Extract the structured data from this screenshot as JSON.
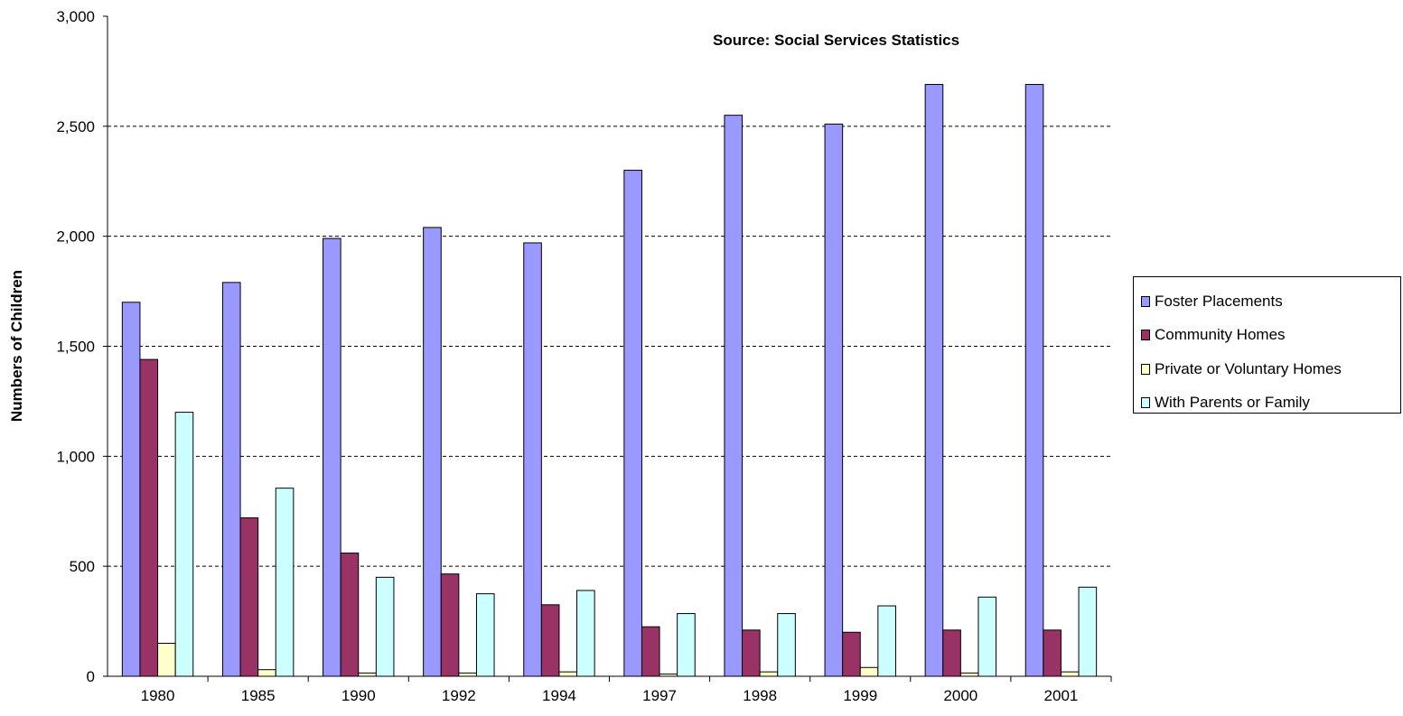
{
  "chart_data": {
    "type": "bar",
    "title": "",
    "annotation": "Source: Social Services Statistics",
    "xlabel": "",
    "ylabel": "Numbers of Children",
    "ylim": [
      0,
      3000
    ],
    "yticks": [
      "0",
      "500",
      "1,000",
      "1,500",
      "2,000",
      "2,500",
      "3,000"
    ],
    "grid": true,
    "legend_position": "right",
    "categories": [
      "1980",
      "1985",
      "1990",
      "1992",
      "1994",
      "1997",
      "1998",
      "1999",
      "2000",
      "2001"
    ],
    "series": [
      {
        "name": "Foster Placements",
        "color": "#9999ff",
        "values": [
          1700,
          1790,
          1990,
          2040,
          1970,
          2300,
          2550,
          2510,
          2690,
          2690
        ]
      },
      {
        "name": "Community Homes",
        "color": "#993366",
        "values": [
          1440,
          720,
          560,
          465,
          325,
          225,
          210,
          200,
          210,
          210
        ]
      },
      {
        "name": "Private or Voluntary Homes",
        "color": "#ffffcc",
        "values": [
          150,
          30,
          15,
          15,
          20,
          10,
          20,
          40,
          15,
          20
        ]
      },
      {
        "name": "With Parents or Family",
        "color": "#ccffff",
        "values": [
          1200,
          855,
          450,
          375,
          390,
          285,
          285,
          320,
          360,
          405
        ]
      }
    ]
  }
}
